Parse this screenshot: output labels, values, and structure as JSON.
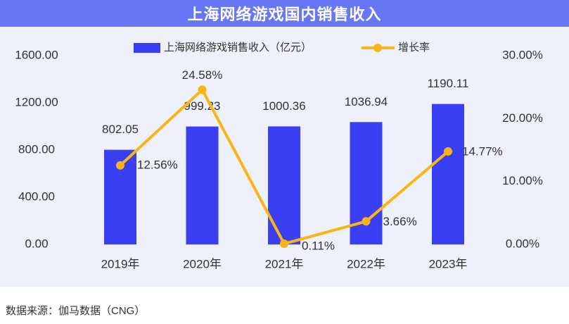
{
  "title": "上海网络游戏国内销售收入",
  "source_note": "数据来源：伽马数据（CNG）",
  "colors": {
    "title_bar": "#6776F5",
    "panel": "#EEF0FB",
    "bar": "#3A3FF1",
    "line": "#F9B515",
    "text": "#333333"
  },
  "chart_data": {
    "type": "bar",
    "categories": [
      "2019年",
      "2020年",
      "2021年",
      "2022年",
      "2023年"
    ],
    "series": [
      {
        "name": "上海网络游戏销售收入（亿元）",
        "type": "bar",
        "axis": "left",
        "values": [
          802.05,
          999.23,
          1000.36,
          1036.94,
          1190.11
        ],
        "labels": [
          "802.05",
          "999.23",
          "1000.36",
          "1036.94",
          "1190.11"
        ]
      },
      {
        "name": "增长率",
        "type": "line",
        "axis": "right",
        "values": [
          12.56,
          24.58,
          0.11,
          3.66,
          14.77
        ],
        "labels": [
          "12.56%",
          "24.58%",
          "0.11%",
          "3.66%",
          "14.77%"
        ]
      }
    ],
    "y_left": {
      "range": [
        0,
        1600
      ],
      "ticks": [
        0,
        400,
        800,
        1200,
        1600
      ],
      "tick_labels": [
        "0.00",
        "400.00",
        "800.00",
        "1200.00",
        "1600.00"
      ]
    },
    "y_right": {
      "range": [
        0,
        30
      ],
      "ticks": [
        0,
        10,
        20,
        30
      ],
      "tick_labels": [
        "0.00%",
        "10.00%",
        "20.00%",
        "30.00%"
      ]
    },
    "legend_position": "top",
    "grid": false
  }
}
